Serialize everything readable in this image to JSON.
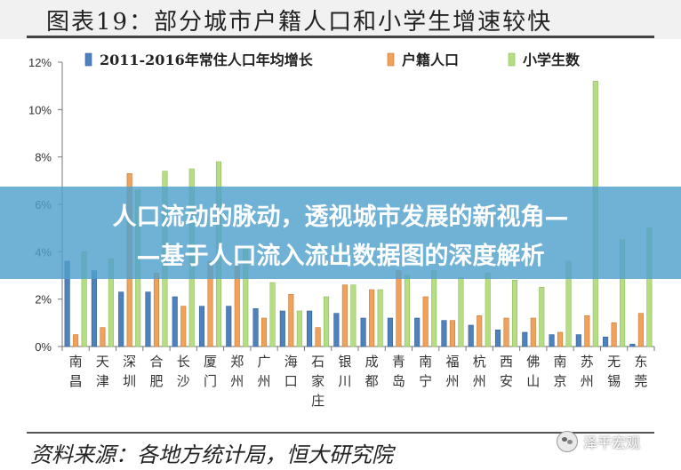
{
  "header": {
    "title": "图表19：部分城市户籍人口和小学生增速较快"
  },
  "banner": {
    "line1": "人口流动的脉动，透视城市发展的新视角—",
    "line2": "—基于人口流入流出数据图的深度解析"
  },
  "source": {
    "text": "资料来源：各地方统计局，恒大研究院"
  },
  "watermark": {
    "text": "泽平宏观",
    "icon": "wechat-icon"
  },
  "colors": {
    "series1": "#4f81bd",
    "series2": "#f0a25c",
    "series3": "#b6dd84"
  },
  "chart_data": {
    "type": "bar",
    "categories": [
      "南昌",
      "天津",
      "深圳",
      "合肥",
      "长沙",
      "厦门",
      "郑州",
      "广州",
      "海口",
      "石家庄",
      "银川",
      "成都",
      "青岛",
      "南宁",
      "福州",
      "杭州",
      "西安",
      "佛山",
      "南京",
      "苏州",
      "无锡",
      "东莞"
    ],
    "series": [
      {
        "name": "2011-2016年常住人口年均增长",
        "values": [
          3.6,
          3.2,
          2.3,
          2.3,
          2.1,
          1.7,
          1.7,
          1.6,
          1.5,
          1.5,
          1.4,
          1.2,
          1.2,
          1.2,
          1.1,
          0.9,
          0.7,
          0.6,
          0.5,
          0.5,
          0.4,
          0.1
        ]
      },
      {
        "name": "户籍人口",
        "values": [
          0.5,
          0.8,
          7.3,
          3.1,
          1.7,
          3.6,
          3.4,
          1.2,
          2.2,
          0.8,
          2.6,
          2.4,
          3.2,
          2.1,
          1.1,
          1.3,
          1.2,
          1.2,
          0.6,
          1.3,
          1.0,
          1.4
        ]
      },
      {
        "name": "小学生数",
        "values": [
          4.0,
          3.7,
          6.6,
          7.4,
          7.5,
          7.8,
          4.2,
          2.7,
          1.5,
          2.1,
          2.6,
          2.4,
          3.0,
          3.2,
          2.9,
          3.1,
          2.8,
          2.5,
          3.6,
          11.2,
          4.5,
          5.0
        ]
      }
    ],
    "yticks": [
      "0%",
      "2%",
      "4%",
      "6%",
      "8%",
      "10%",
      "12%"
    ],
    "ylim": [
      0,
      12
    ],
    "legend_position": "top",
    "grid": false
  }
}
